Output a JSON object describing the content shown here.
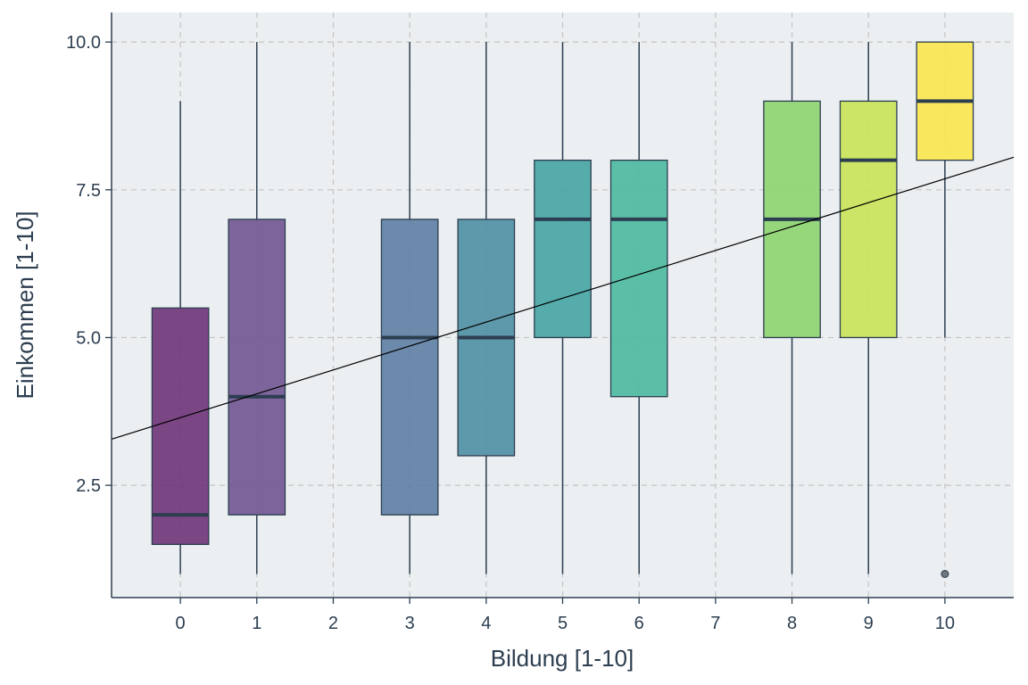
{
  "chart_data": {
    "type": "boxplot",
    "title": "",
    "xlabel": "Bildung [1-10]",
    "ylabel": "Einkommen [1-10]",
    "x_ticks": [
      "0",
      "1",
      "2",
      "3",
      "4",
      "5",
      "6",
      "7",
      "8",
      "9",
      "10"
    ],
    "y_ticks": [
      "2.5",
      "5.0",
      "7.5",
      "10.0"
    ],
    "xlim": [
      -0.9,
      10.9
    ],
    "ylim": [
      0.6,
      10.5
    ],
    "grid": true,
    "legend": "none",
    "colors": {
      "panel_bg": "#ebeff1",
      "grid": "#c4c4c4",
      "axis": "#2c3e50",
      "box_stroke": "#2c3e50",
      "trend_line": "#000000",
      "outlier": "#6e7780"
    },
    "boxes": [
      {
        "x": 0,
        "lower_whisker": 1,
        "q1": 1.5,
        "median": 2,
        "q3": 5.5,
        "upper_whisker": 9,
        "outliers": [],
        "color": "#6f3378"
      },
      {
        "x": 1,
        "lower_whisker": 1,
        "q1": 2,
        "median": 4,
        "q3": 7,
        "upper_whisker": 10,
        "outliers": [],
        "color": "#715591"
      },
      {
        "x": 3,
        "lower_whisker": 1,
        "q1": 2,
        "median": 5,
        "q3": 7,
        "upper_whisker": 10,
        "outliers": [],
        "color": "#5e7ea3"
      },
      {
        "x": 4,
        "lower_whisker": 1,
        "q1": 3,
        "median": 5,
        "q3": 7,
        "upper_whisker": 10,
        "outliers": [],
        "color": "#4f8ea3"
      },
      {
        "x": 5,
        "lower_whisker": 1,
        "q1": 5,
        "median": 7,
        "q3": 8,
        "upper_whisker": 10,
        "outliers": [],
        "color": "#45a4a2"
      },
      {
        "x": 6,
        "lower_whisker": 1,
        "q1": 4,
        "median": 7,
        "q3": 8,
        "upper_whisker": 10,
        "outliers": [],
        "color": "#4bb99e"
      },
      {
        "x": 8,
        "lower_whisker": 1,
        "q1": 5,
        "median": 7,
        "q3": 9,
        "upper_whisker": 10,
        "outliers": [],
        "color": "#8ed46e"
      },
      {
        "x": 9,
        "lower_whisker": 1,
        "q1": 5,
        "median": 8,
        "q3": 9,
        "upper_whisker": 10,
        "outliers": [],
        "color": "#c9e356"
      },
      {
        "x": 10,
        "lower_whisker": 5,
        "q1": 8,
        "median": 9,
        "q3": 10,
        "upper_whisker": 10,
        "outliers": [
          1
        ],
        "color": "#fbe64d"
      }
    ],
    "trend_line": {
      "x": [
        -0.9,
        10.9
      ],
      "y": [
        3.28,
        8.05
      ]
    }
  }
}
